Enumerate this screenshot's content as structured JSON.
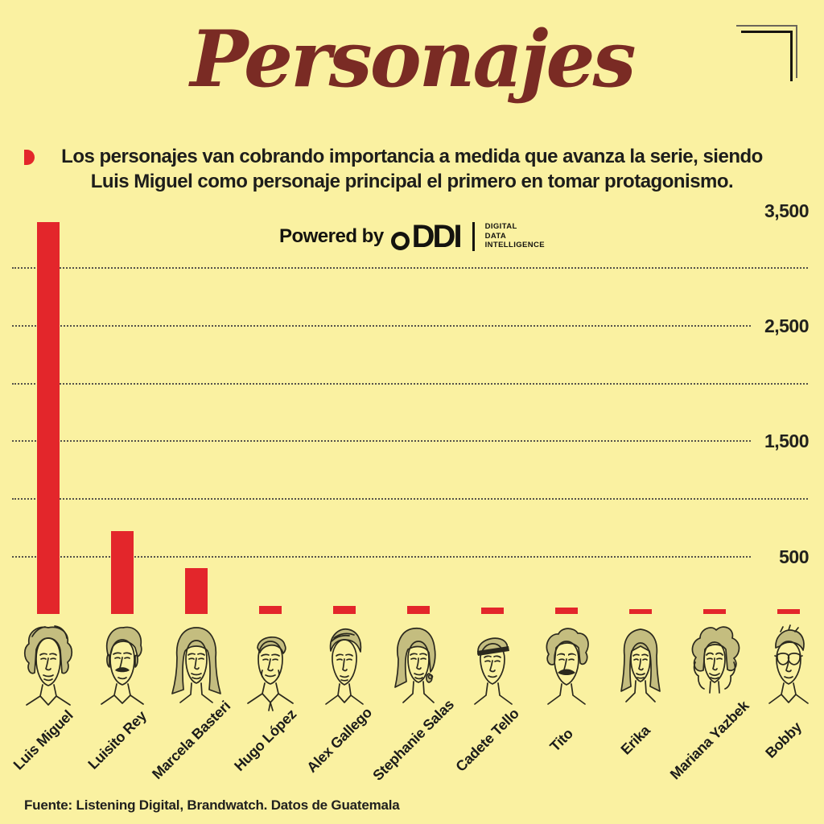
{
  "header": {
    "title": "Personajes",
    "subtitle_line1": "Los personajes van cobrando importancia a medida que avanza la serie, siendo",
    "subtitle_line2": "Luis Miguel como personaje principal el primero en tomar protagonismo."
  },
  "powered_by": {
    "label": "Powered by",
    "logo_text": "DDI",
    "logo_sub1": "DIGITAL",
    "logo_sub2": "DATA",
    "logo_sub3": "INTELLIGENCE"
  },
  "footer": {
    "source": "Fuente: Listening Digital, Brandwatch. Datos de Guatemala"
  },
  "colors": {
    "background": "#FAF1A1",
    "accent_red": "#E3262B",
    "title_maroon": "#7A2B24",
    "text_dark": "#1D1D1B"
  },
  "chart_data": {
    "type": "bar",
    "title": "Personajes",
    "categories": [
      "Luis Miguel",
      "Luisito Rey",
      "Marcela Basteri",
      "Hugo López",
      "Alex Gallego",
      "Stephanie Salas",
      "Cadete Tello",
      "Tito",
      "Erika",
      "Mariana Yazbek",
      "Bobby"
    ],
    "values": [
      3400,
      720,
      400,
      75,
      72,
      70,
      60,
      58,
      46,
      44,
      42
    ],
    "xlabel": "",
    "ylabel": "",
    "ylim": [
      0,
      3500
    ],
    "y_ticks": [
      "3,500",
      "2,500",
      "1,500",
      "500"
    ],
    "gridline_values": [
      3000,
      2500,
      2000,
      1500,
      1000,
      500
    ],
    "labeled_values": [
      2500,
      1500,
      500
    ],
    "grid": "dotted-horizontal",
    "legend_position": "none",
    "bar_color": "#E3262B"
  }
}
